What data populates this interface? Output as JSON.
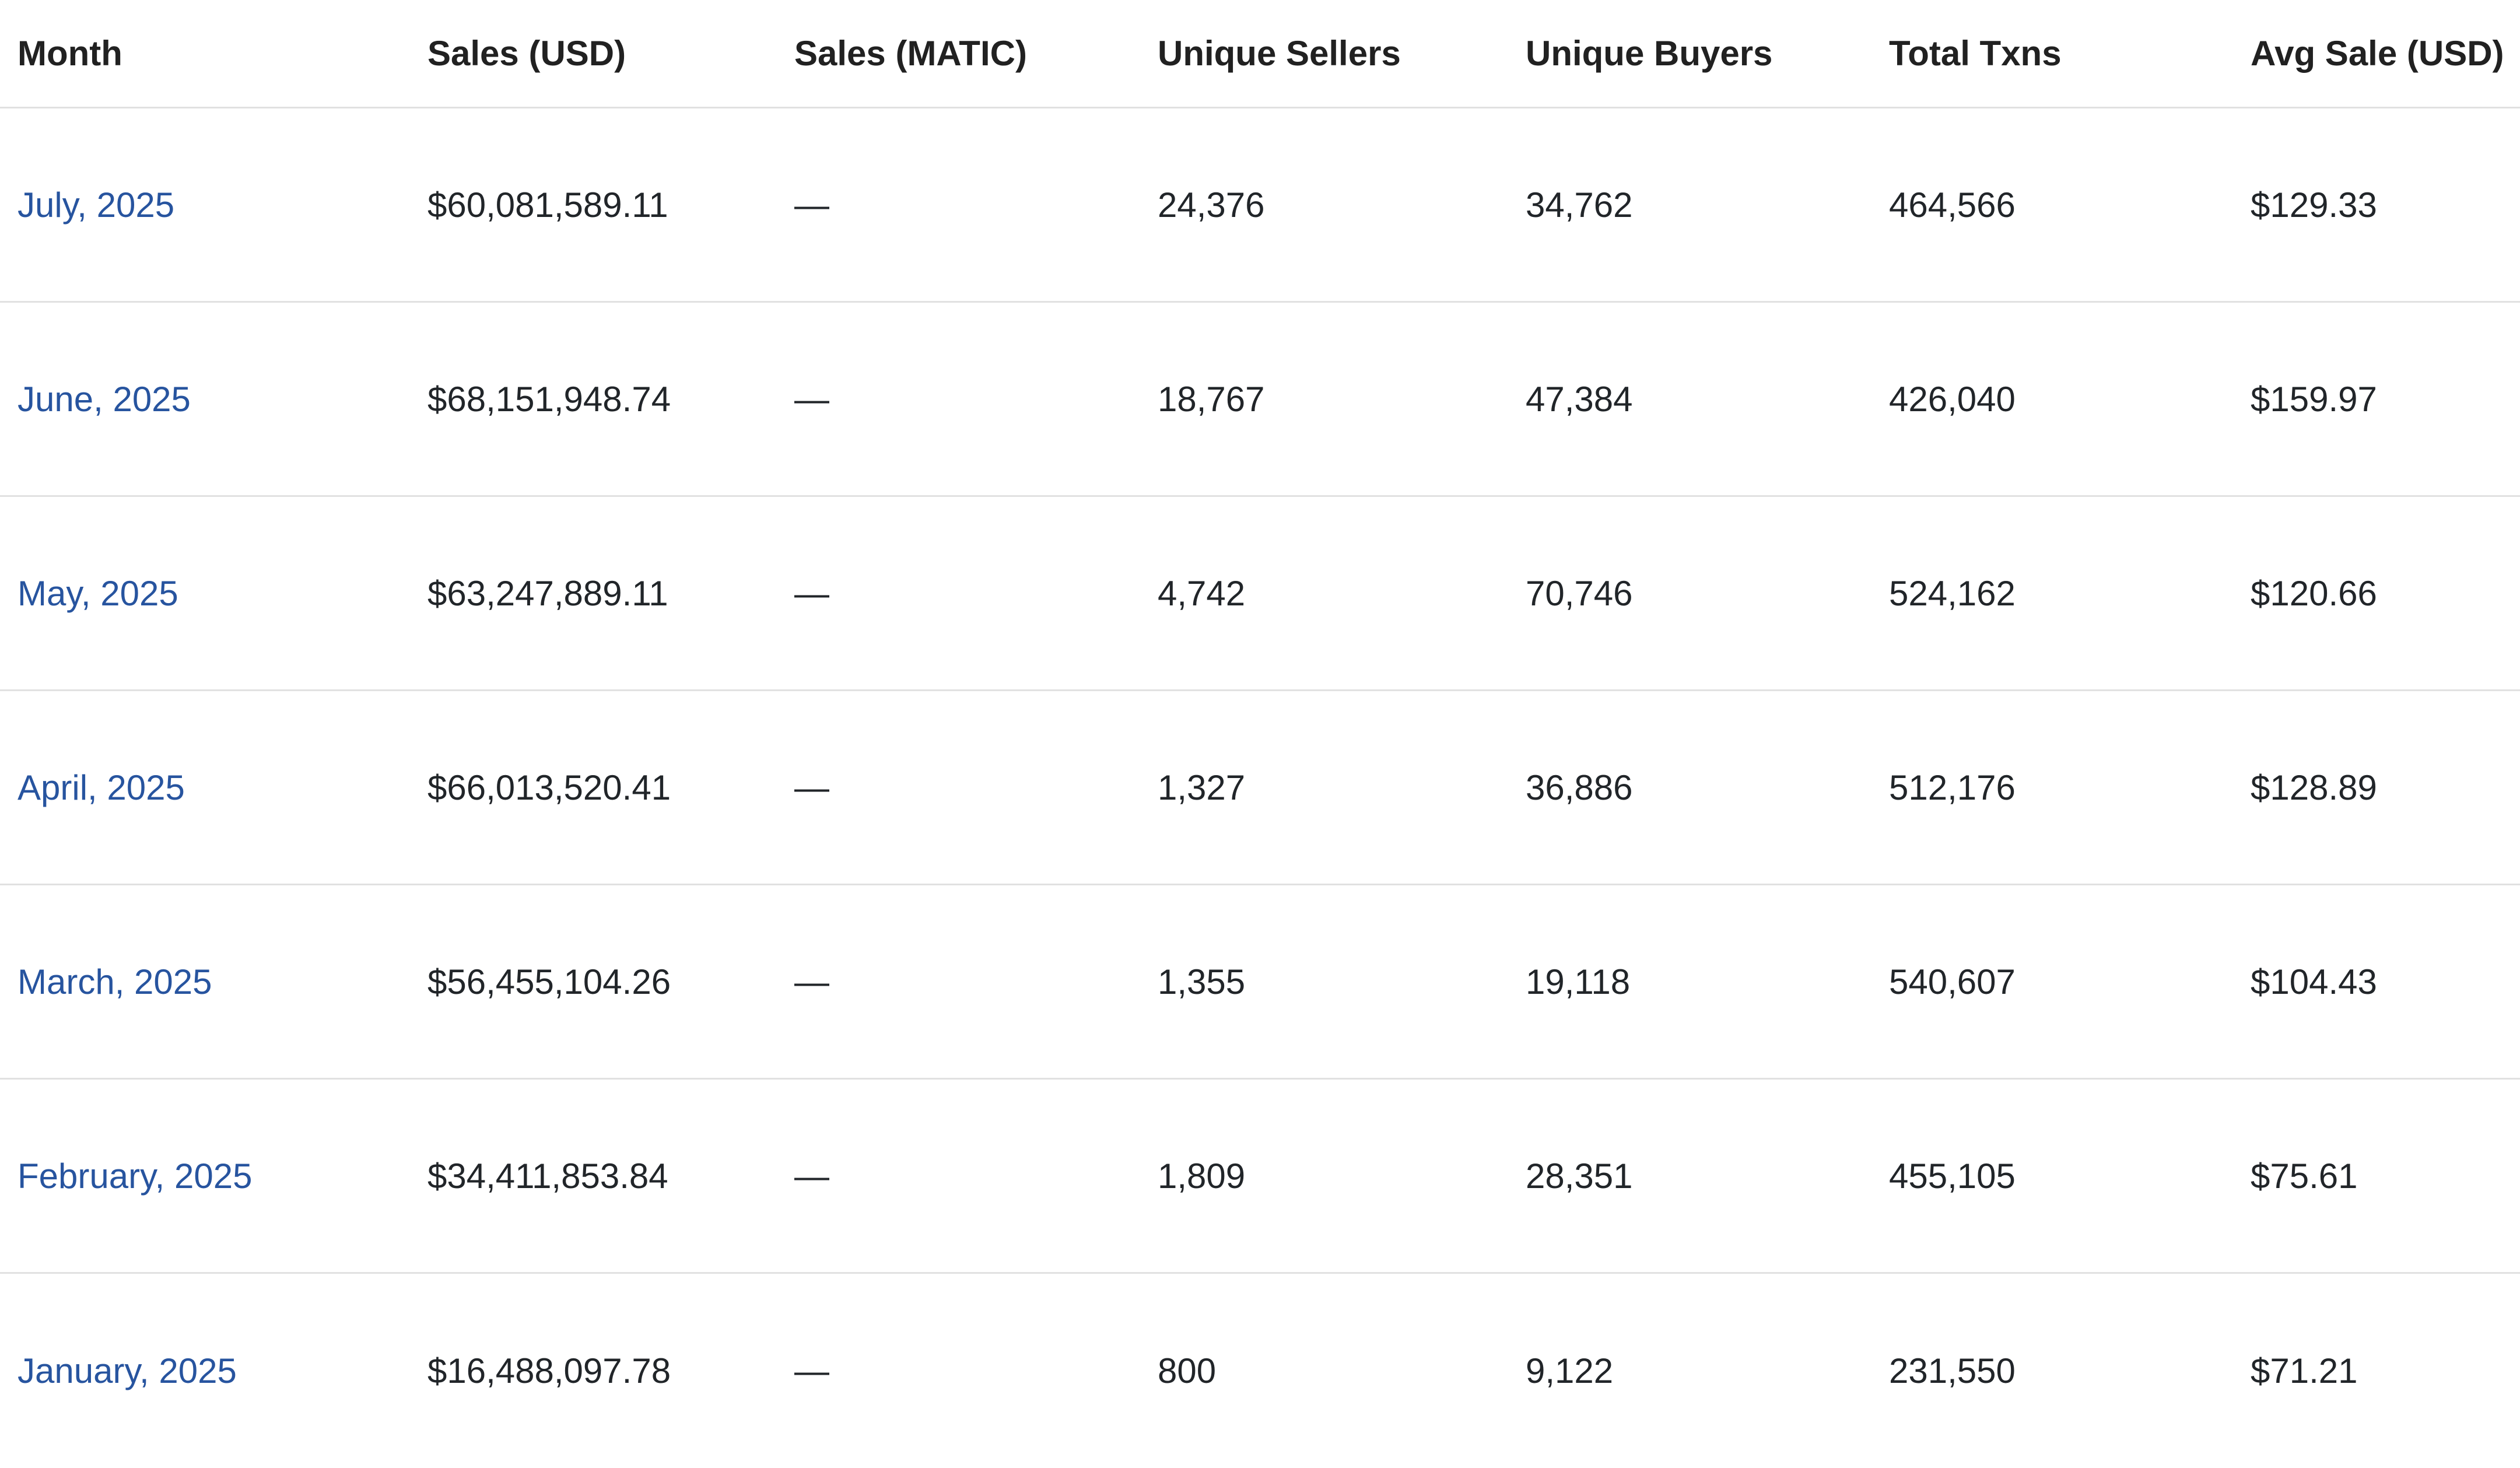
{
  "table": {
    "columns": [
      "Month",
      "Sales (USD)",
      "Sales (MATIC)",
      "Unique Sellers",
      "Unique Buyers",
      "Total Txns",
      "Avg Sale (USD)"
    ],
    "rows": [
      {
        "month": "July, 2025",
        "sales_usd": "$60,081,589.11",
        "sales_matic": "—",
        "unique_sellers": "24,376",
        "unique_buyers": "34,762",
        "total_txns": "464,566",
        "avg_sale_usd": "$129.33"
      },
      {
        "month": "June, 2025",
        "sales_usd": "$68,151,948.74",
        "sales_matic": "—",
        "unique_sellers": "18,767",
        "unique_buyers": "47,384",
        "total_txns": "426,040",
        "avg_sale_usd": "$159.97"
      },
      {
        "month": "May, 2025",
        "sales_usd": "$63,247,889.11",
        "sales_matic": "—",
        "unique_sellers": "4,742",
        "unique_buyers": "70,746",
        "total_txns": "524,162",
        "avg_sale_usd": "$120.66"
      },
      {
        "month": "April, 2025",
        "sales_usd": "$66,013,520.41",
        "sales_matic": "—",
        "unique_sellers": "1,327",
        "unique_buyers": "36,886",
        "total_txns": "512,176",
        "avg_sale_usd": "$128.89"
      },
      {
        "month": "March, 2025",
        "sales_usd": "$56,455,104.26",
        "sales_matic": "—",
        "unique_sellers": "1,355",
        "unique_buyers": "19,118",
        "total_txns": "540,607",
        "avg_sale_usd": "$104.43"
      },
      {
        "month": "February, 2025",
        "sales_usd": "$34,411,853.84",
        "sales_matic": "—",
        "unique_sellers": "1,809",
        "unique_buyers": "28,351",
        "total_txns": "455,105",
        "avg_sale_usd": "$75.61"
      },
      {
        "month": "January, 2025",
        "sales_usd": "$16,488,097.78",
        "sales_matic": "—",
        "unique_sellers": "800",
        "unique_buyers": "9,122",
        "total_txns": "231,550",
        "avg_sale_usd": "$71.21"
      }
    ]
  },
  "colors": {
    "link_blue": "#27549f",
    "divider": "#e1e1e1",
    "header_text": "#212121",
    "body_text": "#212529",
    "background": "#ffffff"
  }
}
